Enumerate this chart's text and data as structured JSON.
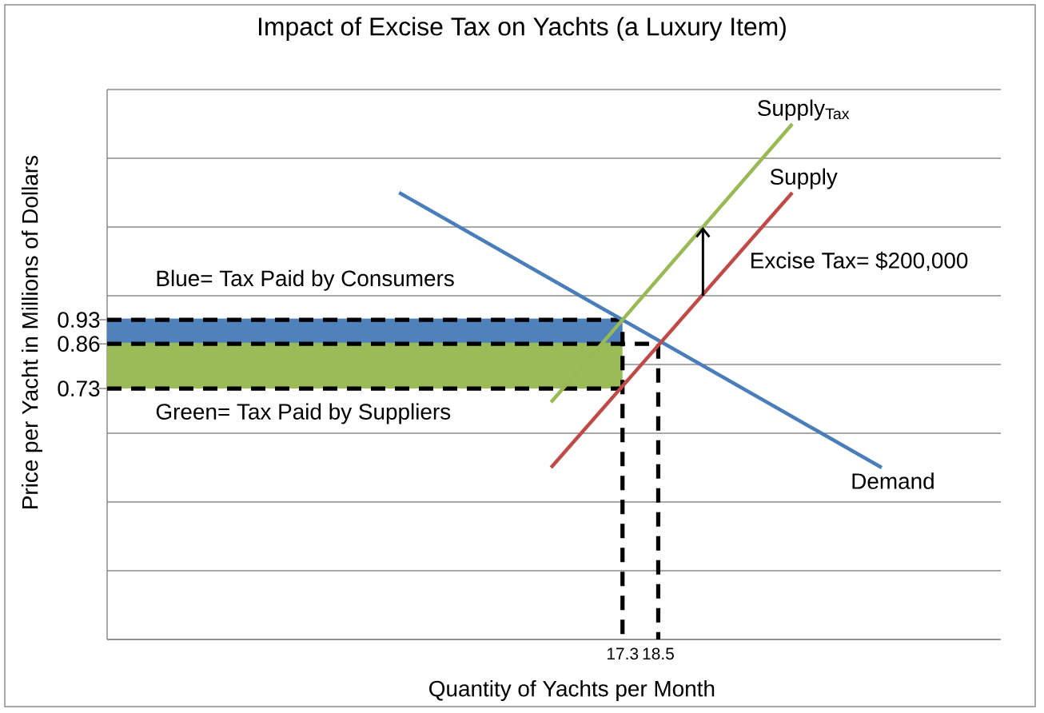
{
  "chart_data": {
    "type": "line",
    "title": "Impact of Excise Tax on Yachts (a Luxury Item)",
    "xlabel": "Quantity of Yachts per Month",
    "ylabel": "Price per Yacht in Millions of Dollars",
    "xlim": [
      0,
      30
    ],
    "ylim": [
      0,
      1.6
    ],
    "xticks": [
      17.3,
      18.5
    ],
    "yticks": [
      {
        "value": 0,
        "label": null
      },
      {
        "value": 0.2,
        "label": null
      },
      {
        "value": 0.4,
        "label": null
      },
      {
        "value": 0.6,
        "label": null
      },
      0.73,
      {
        "value": 0.8,
        "label": null
      },
      0.86,
      0.93,
      {
        "value": 1,
        "label": null
      },
      {
        "value": 1.2,
        "label": null
      },
      {
        "value": 1.4,
        "label": null
      },
      {
        "value": 1.6,
        "label": null
      }
    ],
    "grid": "y",
    "series": [
      {
        "name": "Blue= Tax Paid by Consumers",
        "color": "#4f81bd",
        "x": [
          0,
          17.3
        ],
        "values": [
          0.93,
          0.93
        ],
        "lower": [
          0.86,
          0.86
        ],
        "upper": [
          0.93,
          0.93
        ]
      },
      {
        "name": "Green= Tax Paid by Suppliers",
        "color": "#9bbb59",
        "x": [
          0,
          17.3
        ],
        "values": [
          0.86,
          0.86
        ],
        "lower": [
          0.73,
          0.73
        ],
        "upper": [
          0.86,
          0.86
        ]
      },
      {
        "line_style": "dashed",
        "color": "#000000",
        "x": [
          0,
          17.3,
          17.3
        ],
        "values": [
          0.93,
          0.93,
          0
        ]
      },
      {
        "line_style": "dashed",
        "color": "#000000",
        "x": [
          0,
          18.5,
          18.5
        ],
        "values": [
          0.86,
          0.86,
          0
        ]
      },
      {
        "line_style": "dashed",
        "color": "#000000",
        "x": [
          0,
          17.3
        ],
        "values": [
          0.73,
          0.73
        ]
      },
      {
        "name": "Demand",
        "color": "#4a7ebb",
        "x": [
          9.8,
          26
        ],
        "values": [
          1.3,
          0.5
        ]
      },
      {
        "name": "Supply",
        "color": "#be4b48",
        "x": [
          14.9,
          23
        ],
        "values": [
          0.5,
          1.3
        ]
      },
      {
        "name": "Supply$_{Tax}$",
        "color": "#98b954",
        "x": [
          14.9,
          23
        ],
        "values": [
          0.69,
          1.5
        ]
      }
    ],
    "annotations": [
      {
        "text": "Excise Tax= $200,000",
        "x": 20,
        "y": 1.0
      }
    ]
  }
}
